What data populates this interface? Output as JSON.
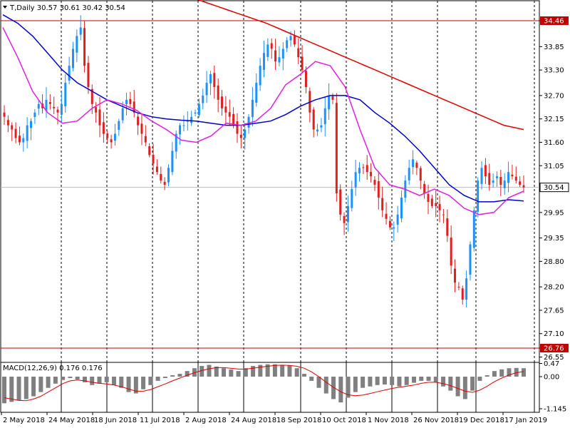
{
  "chart_data": {
    "type": "candlestick",
    "symbol_header": "T,Daily  30.57 30.61 30.42 30.54",
    "indicator_label": "MACD(12,26,9) 0.176 0.176",
    "x_labels": [
      "2 May 2018",
      "24 May 2018",
      "18 Jun 2018",
      "11 Jul 2018",
      "2 Aug 2018",
      "24 Aug 2018",
      "18 Sep 2018",
      "10 Oct 2018",
      "1 Nov 2018",
      "26 Nov 2018",
      "19 Dec 2018",
      "17 Jan 2019"
    ],
    "price_ticks": [
      "34.46",
      "33.85",
      "33.30",
      "32.70",
      "32.15",
      "31.60",
      "31.05",
      "30.54",
      "29.95",
      "29.35",
      "28.80",
      "28.20",
      "27.65",
      "27.10",
      "26.76",
      "26.55"
    ],
    "price_tick_values": [
      34.46,
      33.85,
      33.3,
      32.7,
      32.15,
      31.6,
      31.05,
      30.54,
      29.95,
      29.35,
      28.8,
      28.2,
      27.65,
      27.1,
      26.76,
      26.55
    ],
    "macd_ticks": [
      "0.47",
      "0.00",
      "-1.145"
    ],
    "macd_tick_values": [
      0.47,
      0.0,
      -1.145
    ],
    "ylim": [
      26.55,
      35.0
    ],
    "macd_ylim": [
      -1.145,
      0.47
    ],
    "levels": [
      {
        "label": "34.46",
        "value": 34.46,
        "color": "#c00000"
      },
      {
        "label": "26.76",
        "value": 26.76,
        "color": "#c00000"
      }
    ],
    "current_price": {
      "label": "30.54",
      "value": 30.54
    },
    "closes": [
      32.2,
      32.0,
      31.9,
      31.7,
      31.6,
      31.7,
      32.0,
      32.1,
      32.3,
      32.5,
      32.4,
      32.6,
      32.5,
      32.4,
      32.3,
      32.5,
      33.0,
      33.4,
      33.8,
      34.1,
      34.3,
      33.4,
      32.9,
      32.5,
      32.3,
      32.0,
      31.8,
      31.7,
      31.6,
      31.8,
      32.1,
      32.4,
      32.6,
      32.5,
      32.3,
      32.0,
      31.8,
      31.6,
      31.3,
      31.1,
      30.9,
      30.7,
      30.6,
      31.0,
      31.4,
      31.8,
      32.0,
      32.0,
      32.1,
      32.2,
      32.3,
      32.5,
      32.7,
      33.0,
      33.2,
      32.9,
      32.6,
      32.4,
      32.3,
      32.2,
      32.0,
      31.8,
      31.7,
      31.9,
      32.2,
      32.6,
      33.0,
      33.4,
      33.7,
      33.9,
      33.8,
      33.5,
      33.6,
      33.8,
      34.0,
      34.1,
      33.9,
      33.6,
      33.3,
      32.9,
      32.3,
      31.9,
      31.9,
      32.0,
      32.4,
      32.7,
      32.6,
      30.4,
      29.9,
      29.7,
      30.1,
      30.5,
      30.9,
      31.0,
      31.0,
      30.9,
      30.8,
      30.6,
      30.3,
      30.0,
      29.8,
      29.6,
      29.6,
      29.9,
      30.3,
      30.7,
      31.0,
      31.2,
      31.0,
      30.7,
      30.4,
      30.2,
      30.1,
      30.1,
      30.0,
      29.9,
      29.4,
      28.7,
      28.3,
      28.2,
      27.9,
      28.4,
      29.2,
      30.0,
      30.7,
      31.0,
      30.8,
      30.6,
      30.7,
      30.8,
      30.6,
      30.7,
      30.9,
      30.8,
      30.7,
      30.6,
      30.54
    ],
    "ma_red": [
      35.2,
      35.12,
      35.04,
      34.96,
      34.88,
      34.8,
      34.72,
      34.64,
      34.56,
      34.48,
      34.4,
      34.3,
      34.2,
      34.1,
      34.0,
      33.9,
      33.8,
      33.7,
      33.6,
      33.5,
      33.4,
      33.3,
      33.2,
      33.1,
      33.0,
      32.9,
      32.8,
      32.7,
      32.6,
      32.5,
      32.4,
      32.3,
      32.2,
      32.1,
      32.0,
      31.95,
      31.9
    ],
    "ma_blue": [
      34.6,
      34.4,
      34.1,
      33.7,
      33.3,
      33.0,
      32.8,
      32.6,
      32.45,
      32.3,
      32.2,
      32.15,
      32.12,
      32.1,
      32.05,
      32.0,
      32.0,
      32.05,
      32.1,
      32.25,
      32.45,
      32.6,
      32.7,
      32.7,
      32.6,
      32.3,
      32.05,
      31.75,
      31.4,
      31.0,
      30.6,
      30.35,
      30.2,
      30.2,
      30.25,
      30.22
    ],
    "ma_magenta": [
      34.3,
      33.6,
      32.8,
      32.3,
      32.05,
      32.1,
      32.4,
      32.6,
      32.5,
      32.35,
      32.1,
      31.9,
      31.65,
      31.6,
      31.75,
      32.05,
      32.0,
      32.1,
      32.4,
      32.95,
      33.2,
      33.5,
      33.4,
      32.9,
      31.9,
      31.0,
      30.6,
      30.5,
      30.35,
      30.5,
      30.35,
      30.05,
      29.9,
      29.95,
      30.3,
      30.45
    ],
    "macd_histogram": [
      -0.95,
      -0.9,
      -0.85,
      -0.8,
      -0.7,
      -0.55,
      -0.4,
      -0.25,
      -0.12,
      -0.05,
      -0.1,
      -0.2,
      -0.3,
      -0.25,
      -0.2,
      -0.3,
      -0.4,
      -0.55,
      -0.6,
      -0.45,
      -0.3,
      -0.15,
      -0.05,
      0.05,
      0.1,
      0.2,
      0.3,
      0.38,
      0.42,
      0.36,
      0.3,
      0.25,
      0.2,
      0.3,
      0.38,
      0.42,
      0.44,
      0.44,
      0.42,
      0.4,
      0.3,
      0.1,
      -0.15,
      -0.4,
      -0.6,
      -0.8,
      -0.92,
      -0.75,
      -0.55,
      -0.4,
      -0.35,
      -0.3,
      -0.28,
      -0.3,
      -0.35,
      -0.3,
      -0.22,
      -0.15,
      -0.15,
      -0.2,
      -0.35,
      -0.5,
      -0.7,
      -0.8,
      -0.5,
      -0.15,
      0.05,
      0.2,
      0.26,
      0.3,
      0.31,
      0.3
    ],
    "macd_signal": [
      -0.75,
      -0.8,
      -0.85,
      -0.86,
      -0.8,
      -0.7,
      -0.55,
      -0.4,
      -0.25,
      -0.15,
      -0.12,
      -0.15,
      -0.2,
      -0.24,
      -0.26,
      -0.3,
      -0.36,
      -0.44,
      -0.52,
      -0.52,
      -0.46,
      -0.36,
      -0.26,
      -0.15,
      -0.05,
      0.05,
      0.14,
      0.22,
      0.28,
      0.32,
      0.32,
      0.3,
      0.27,
      0.27,
      0.3,
      0.34,
      0.37,
      0.4,
      0.41,
      0.4,
      0.37,
      0.3,
      0.17,
      0.0,
      -0.2,
      -0.38,
      -0.54,
      -0.65,
      -0.68,
      -0.66,
      -0.6,
      -0.54,
      -0.48,
      -0.42,
      -0.38,
      -0.34,
      -0.3,
      -0.24,
      -0.2,
      -0.2,
      -0.25,
      -0.32,
      -0.42,
      -0.52,
      -0.56,
      -0.48,
      -0.34,
      -0.18,
      -0.05,
      0.06,
      0.14,
      0.18
    ]
  }
}
